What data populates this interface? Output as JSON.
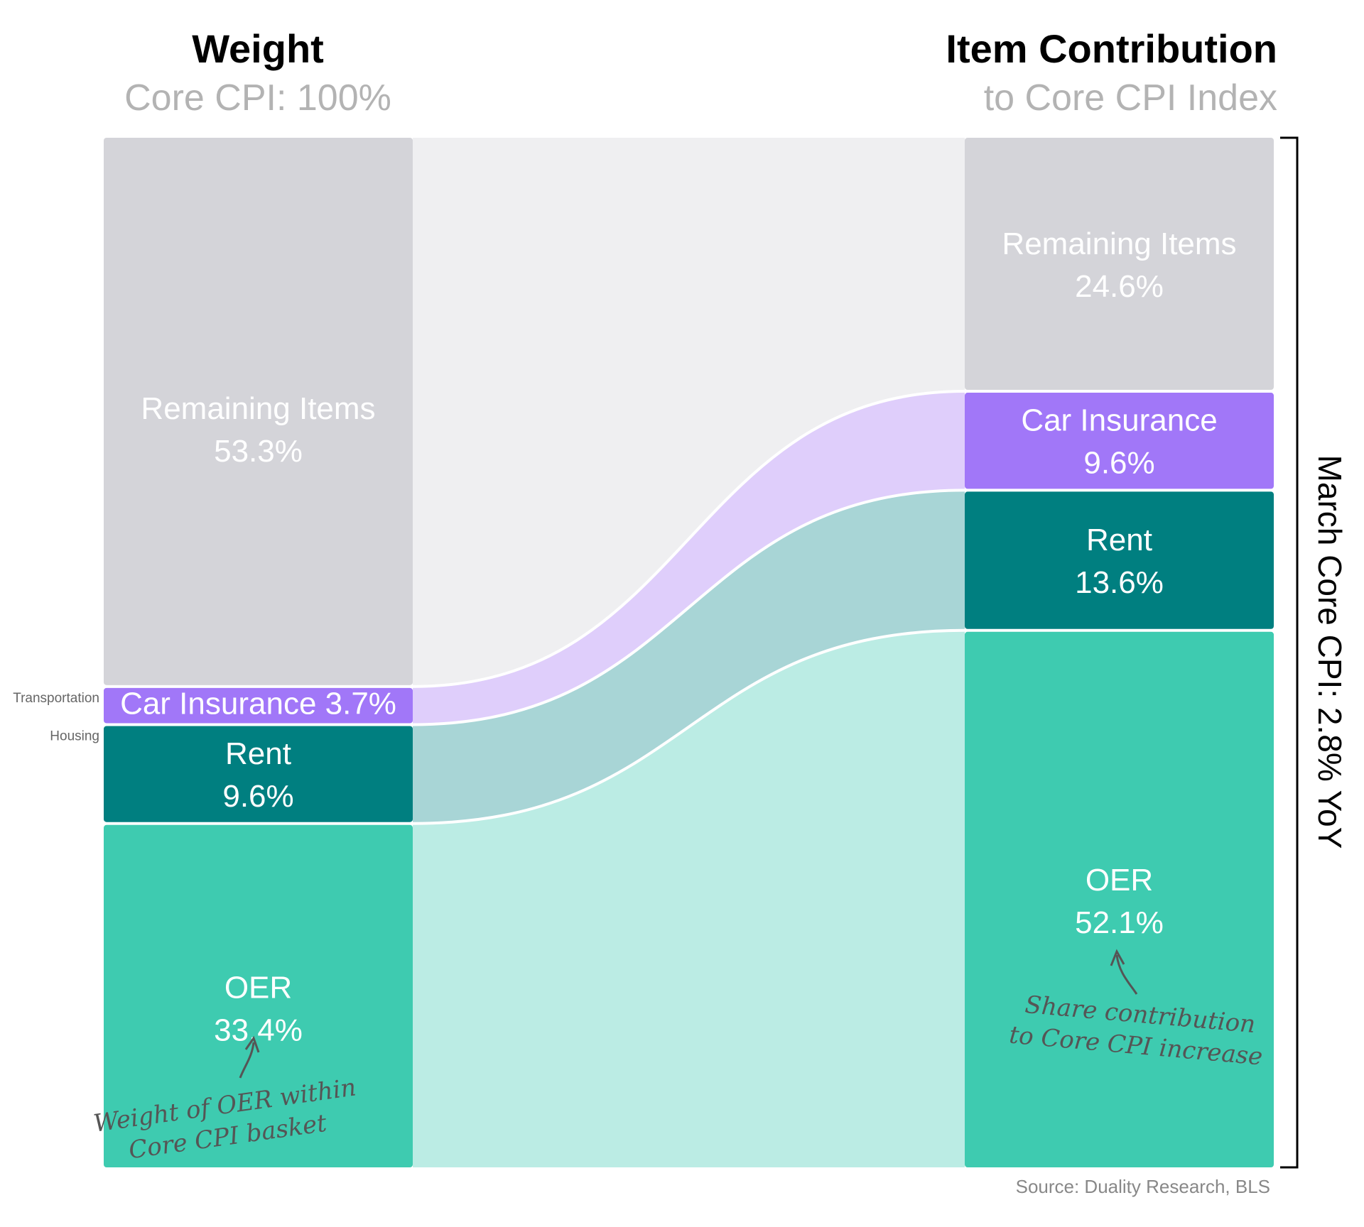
{
  "chart_data": {
    "type": "sankey",
    "left": {
      "title": "Weight",
      "subtitle": "Core CPI: 100%",
      "nodes": [
        {
          "id": "remaining",
          "label": "Remaining Items",
          "value": 53.3,
          "value_text": "53.3%",
          "color": "#d4d4d9",
          "text_color": "#ffffff"
        },
        {
          "id": "car",
          "label": "Car Insurance",
          "value": 3.7,
          "value_text": "3.7%",
          "color": "#a177f8",
          "text_color": "#ffffff",
          "group_label": "Transportation"
        },
        {
          "id": "rent",
          "label": "Rent",
          "value": 9.6,
          "value_text": "9.6%",
          "color": "#007f80",
          "text_color": "#ffffff",
          "group_label": "Housing"
        },
        {
          "id": "oer",
          "label": "OER",
          "value": 33.4,
          "value_text": "33.4%",
          "color": "#3ecbb0",
          "text_color": "#ffffff"
        }
      ]
    },
    "right": {
      "title": "Item Contribution",
      "subtitle": "to Core CPI Index",
      "nodes": [
        {
          "id": "remaining",
          "label": "Remaining Items",
          "value": 24.6,
          "value_text": "24.6%",
          "color": "#d4d4d9",
          "text_color": "#ffffff"
        },
        {
          "id": "car",
          "label": "Car Insurance",
          "value": 9.6,
          "value_text": "9.6%",
          "color": "#a177f8",
          "text_color": "#ffffff"
        },
        {
          "id": "rent",
          "label": "Rent",
          "value": 13.6,
          "value_text": "13.6%",
          "color": "#007f80",
          "text_color": "#ffffff"
        },
        {
          "id": "oer",
          "label": "OER",
          "value": 52.1,
          "value_text": "52.1%",
          "color": "#3ecbb0",
          "text_color": "#ffffff"
        }
      ]
    },
    "flow_colors": {
      "remaining": "#efeff1",
      "car": "#dfcefb",
      "rent": "#a8d5d6",
      "oer": "#bbece4"
    },
    "side_label": "March Core CPI: 2.8% YoY",
    "annotations": [
      {
        "id": "left-note",
        "lines": [
          "Weight of OER within",
          "Core CPI basket"
        ]
      },
      {
        "id": "right-note",
        "lines": [
          "Share contribution",
          "to Core CPI increase"
        ]
      }
    ],
    "source": "Source: Duality Research, BLS"
  }
}
